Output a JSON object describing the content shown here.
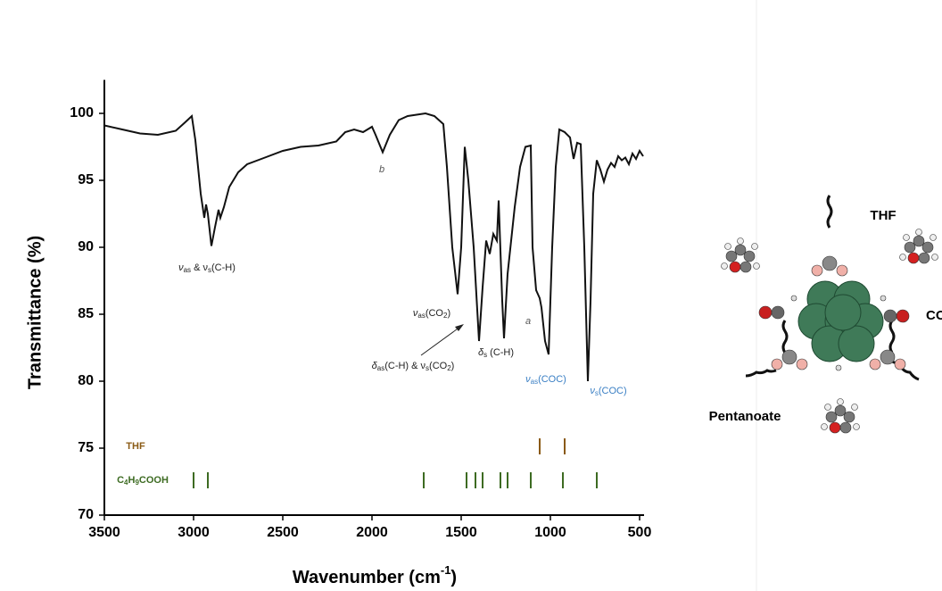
{
  "chart_data": {
    "type": "line",
    "ylabel": "Transmittance (%)",
    "xlabel": [
      "Wavenumber (cm",
      "-1",
      ")"
    ],
    "x": [
      3500,
      3400,
      3300,
      3200,
      3100,
      3050,
      3010,
      2990,
      2960,
      2940,
      2930,
      2920,
      2900,
      2880,
      2860,
      2850,
      2830,
      2800,
      2750,
      2700,
      2600,
      2500,
      2400,
      2300,
      2200,
      2150,
      2100,
      2050,
      2000,
      1980,
      1940,
      1900,
      1850,
      1800,
      1750,
      1700,
      1650,
      1600,
      1580,
      1550,
      1520,
      1500,
      1480,
      1460,
      1430,
      1400,
      1380,
      1360,
      1340,
      1320,
      1300,
      1290,
      1270,
      1260,
      1240,
      1200,
      1170,
      1140,
      1110,
      1100,
      1080,
      1060,
      1050,
      1030,
      1010,
      990,
      970,
      950,
      920,
      890,
      870,
      850,
      830,
      810,
      790,
      775,
      760,
      740,
      720,
      700,
      680,
      660,
      640,
      620,
      600,
      580,
      560,
      540,
      520,
      500,
      480
    ],
    "series": [
      {
        "color": "#111111",
        "values": [
          99.1,
          98.8,
          98.5,
          98.4,
          98.7,
          99.3,
          99.8,
          98,
          94,
          92.2,
          93.2,
          92.5,
          90.1,
          91.5,
          92.8,
          92.2,
          93,
          94.5,
          95.6,
          96.2,
          96.7,
          97.2,
          97.5,
          97.6,
          97.9,
          98.6,
          98.8,
          98.6,
          99,
          98.4,
          97.1,
          98.4,
          99.5,
          99.8,
          99.9,
          100,
          99.8,
          99.2,
          96,
          90,
          86.5,
          90,
          97.5,
          95,
          90,
          83,
          87,
          90.5,
          89.5,
          91,
          90.5,
          93.5,
          86,
          83.2,
          88,
          93,
          96,
          97.5,
          97.6,
          90,
          86.8,
          86.2,
          85.5,
          83,
          82,
          90,
          96,
          98.8,
          98.6,
          98.2,
          96.6,
          97.8,
          97.7,
          90,
          80,
          86,
          94,
          96.5,
          95.8,
          94.9,
          95.8,
          96.3,
          96,
          96.8,
          96.5,
          96.7,
          96.2,
          97,
          96.6,
          97.2,
          96.8
        ]
      }
    ],
    "xlim": [
      3500,
      475
    ],
    "ylim": [
      70,
      102.5
    ],
    "xticks": [
      3500,
      3000,
      2500,
      2000,
      1500,
      1000,
      500
    ],
    "yticks": [
      70,
      75,
      80,
      85,
      90,
      95,
      100
    ],
    "annotations": [
      {
        "parts": [
          "ν",
          "as",
          " & ν",
          "s",
          "(C-H)"
        ],
        "color": "#222222"
      },
      {
        "parts": [
          "b"
        ],
        "color": "#555555"
      },
      {
        "parts": [
          "ν",
          "as",
          "(CO",
          "2",
          ")"
        ],
        "color": "#222222"
      },
      {
        "parts": [
          "δ",
          "as",
          "(C-H) & ν",
          "s",
          "(CO",
          "2",
          ")"
        ],
        "color": "#222222"
      },
      {
        "parts": [
          "δ",
          "s",
          " (C-H)"
        ],
        "color": "#222222"
      },
      {
        "parts": [
          "a"
        ],
        "color": "#555555"
      },
      {
        "parts": [
          "ν",
          "as",
          "(COC)"
        ],
        "color": "#3a7fc4"
      },
      {
        "parts": [
          "ν",
          "s",
          "(COC)"
        ],
        "color": "#3a7fc4"
      }
    ],
    "references": [
      {
        "name": [
          "THF"
        ],
        "color": "#8a5a14",
        "positions": [
          1060,
          920
        ]
      },
      {
        "name": [
          "C",
          "4",
          "H",
          "9",
          "COOH"
        ],
        "color": "#3d6b22",
        "positions": [
          3000,
          2920,
          1710,
          1470,
          1420,
          1380,
          1280,
          1240,
          1110,
          930,
          740
        ]
      }
    ]
  },
  "illustration": {
    "labels": [
      "THF",
      "CO",
      "Pentanoate"
    ]
  }
}
